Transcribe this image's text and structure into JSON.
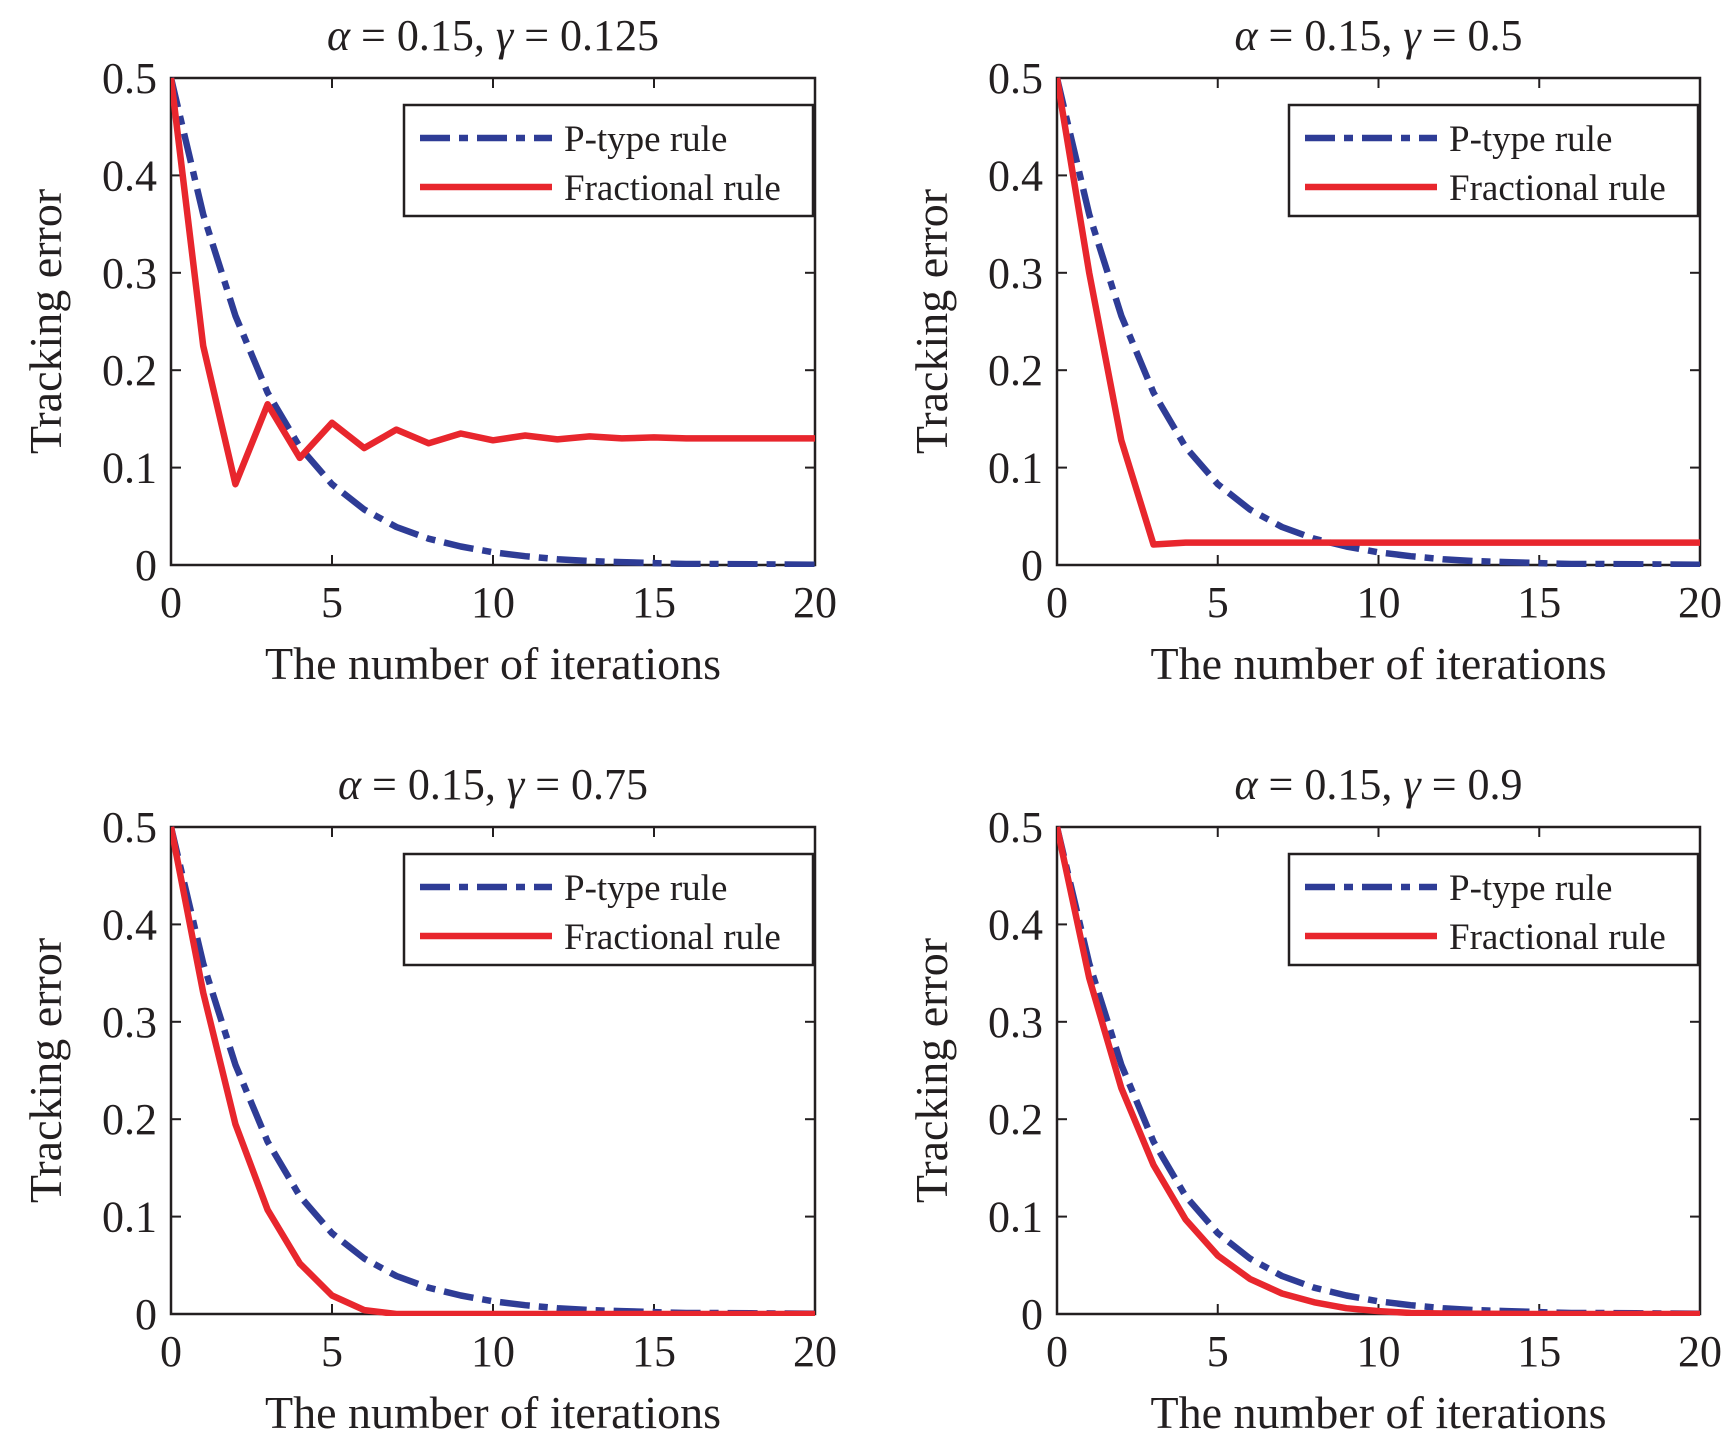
{
  "figure": {
    "panel_count": 4
  },
  "colors": {
    "p_type": "#2e3c96",
    "fractional": "#e8262d",
    "axes": "#231f20",
    "background": "#ffffff"
  },
  "chart_data": [
    {
      "type": "line",
      "title_parts": {
        "alpha_symbol": "α",
        "alpha_text": " = 0.15, ",
        "gamma_symbol": "γ",
        "gamma_text": " = 0.125"
      },
      "xlabel": "The number of iterations",
      "ylabel": "Tracking error",
      "xlim": [
        0,
        20
      ],
      "ylim": [
        0,
        0.5
      ],
      "xticks": [
        "0",
        "5",
        "10",
        "15",
        "20"
      ],
      "yticks": [
        "0",
        "0.1",
        "0.2",
        "0.3",
        "0.4",
        "0.5"
      ],
      "legend_position": "top-right",
      "x": [
        0,
        1,
        2,
        3,
        4,
        5,
        6,
        7,
        8,
        9,
        10,
        11,
        12,
        13,
        14,
        15,
        16,
        17,
        18,
        19,
        20
      ],
      "series": [
        {
          "name": "P-type rule",
          "style": "dash-dot",
          "color": "#2e3c96",
          "values": [
            0.5,
            0.36,
            0.256,
            0.177,
            0.121,
            0.083,
            0.057,
            0.039,
            0.027,
            0.019,
            0.013,
            0.009,
            0.006,
            0.004,
            0.003,
            0.002,
            0.001,
            0.001,
            0.0007,
            0.0005,
            0.0003
          ]
        },
        {
          "name": "Fractional rule",
          "style": "solid",
          "color": "#e8262d",
          "values": [
            0.5,
            0.225,
            0.083,
            0.165,
            0.11,
            0.146,
            0.12,
            0.139,
            0.125,
            0.135,
            0.128,
            0.133,
            0.129,
            0.132,
            0.13,
            0.131,
            0.13,
            0.13,
            0.13,
            0.13,
            0.13
          ]
        }
      ]
    },
    {
      "type": "line",
      "title_parts": {
        "alpha_symbol": "α",
        "alpha_text": " = 0.15, ",
        "gamma_symbol": "γ",
        "gamma_text": " = 0.5"
      },
      "xlabel": "The number of iterations",
      "ylabel": "Tracking error",
      "xlim": [
        0,
        20
      ],
      "ylim": [
        0,
        0.5
      ],
      "xticks": [
        "0",
        "5",
        "10",
        "15",
        "20"
      ],
      "yticks": [
        "0",
        "0.1",
        "0.2",
        "0.3",
        "0.4",
        "0.5"
      ],
      "legend_position": "top-right",
      "x": [
        0,
        1,
        2,
        3,
        4,
        5,
        6,
        7,
        8,
        9,
        10,
        11,
        12,
        13,
        14,
        15,
        16,
        17,
        18,
        19,
        20
      ],
      "series": [
        {
          "name": "P-type rule",
          "style": "dash-dot",
          "color": "#2e3c96",
          "values": [
            0.5,
            0.36,
            0.256,
            0.177,
            0.121,
            0.083,
            0.057,
            0.039,
            0.027,
            0.019,
            0.013,
            0.009,
            0.006,
            0.004,
            0.003,
            0.002,
            0.001,
            0.001,
            0.0007,
            0.0005,
            0.0003
          ]
        },
        {
          "name": "Fractional rule",
          "style": "solid",
          "color": "#e8262d",
          "values": [
            0.5,
            0.3,
            0.128,
            0.021,
            0.023,
            0.023,
            0.023,
            0.023,
            0.023,
            0.023,
            0.023,
            0.023,
            0.023,
            0.023,
            0.023,
            0.023,
            0.023,
            0.023,
            0.023,
            0.023,
            0.023
          ]
        }
      ]
    },
    {
      "type": "line",
      "title_parts": {
        "alpha_symbol": "α",
        "alpha_text": " = 0.15, ",
        "gamma_symbol": "γ",
        "gamma_text": " = 0.75"
      },
      "xlabel": "The number of iterations",
      "ylabel": "Tracking error",
      "xlim": [
        0,
        20
      ],
      "ylim": [
        0,
        0.5
      ],
      "xticks": [
        "0",
        "5",
        "10",
        "15",
        "20"
      ],
      "yticks": [
        "0",
        "0.1",
        "0.2",
        "0.3",
        "0.4",
        "0.5"
      ],
      "legend_position": "top-right",
      "x": [
        0,
        1,
        2,
        3,
        4,
        5,
        6,
        7,
        8,
        9,
        10,
        11,
        12,
        13,
        14,
        15,
        16,
        17,
        18,
        19,
        20
      ],
      "series": [
        {
          "name": "P-type rule",
          "style": "dash-dot",
          "color": "#2e3c96",
          "values": [
            0.5,
            0.36,
            0.256,
            0.177,
            0.121,
            0.083,
            0.057,
            0.039,
            0.027,
            0.019,
            0.013,
            0.009,
            0.006,
            0.004,
            0.003,
            0.002,
            0.001,
            0.001,
            0.0007,
            0.0005,
            0.0003
          ]
        },
        {
          "name": "Fractional rule",
          "style": "solid",
          "color": "#e8262d",
          "values": [
            0.5,
            0.33,
            0.195,
            0.107,
            0.052,
            0.019,
            0.004,
            0.0,
            0.0,
            0.0,
            0.0,
            0.0,
            0.0,
            0.0,
            0.0,
            0.0,
            0.0,
            0.0,
            0.0,
            0.0,
            0.0
          ]
        }
      ]
    },
    {
      "type": "line",
      "title_parts": {
        "alpha_symbol": "α",
        "alpha_text": " = 0.15, ",
        "gamma_symbol": "γ",
        "gamma_text": " = 0.9"
      },
      "xlabel": "The number of iterations",
      "ylabel": "Tracking error",
      "xlim": [
        0,
        20
      ],
      "ylim": [
        0,
        0.5
      ],
      "xticks": [
        "0",
        "5",
        "10",
        "15",
        "20"
      ],
      "yticks": [
        "0",
        "0.1",
        "0.2",
        "0.3",
        "0.4",
        "0.5"
      ],
      "legend_position": "top-right",
      "x": [
        0,
        1,
        2,
        3,
        4,
        5,
        6,
        7,
        8,
        9,
        10,
        11,
        12,
        13,
        14,
        15,
        16,
        17,
        18,
        19,
        20
      ],
      "series": [
        {
          "name": "P-type rule",
          "style": "dash-dot",
          "color": "#2e3c96",
          "values": [
            0.5,
            0.36,
            0.256,
            0.177,
            0.121,
            0.083,
            0.057,
            0.039,
            0.027,
            0.019,
            0.013,
            0.009,
            0.006,
            0.004,
            0.003,
            0.002,
            0.001,
            0.001,
            0.0007,
            0.0005,
            0.0003
          ]
        },
        {
          "name": "Fractional rule",
          "style": "solid",
          "color": "#e8262d",
          "values": [
            0.5,
            0.345,
            0.232,
            0.153,
            0.097,
            0.06,
            0.036,
            0.021,
            0.012,
            0.006,
            0.003,
            0.001,
            0.0005,
            0.0002,
            0.0001,
            0.0,
            0.0,
            0.0,
            0.0,
            0.0,
            0.0
          ]
        }
      ]
    }
  ]
}
